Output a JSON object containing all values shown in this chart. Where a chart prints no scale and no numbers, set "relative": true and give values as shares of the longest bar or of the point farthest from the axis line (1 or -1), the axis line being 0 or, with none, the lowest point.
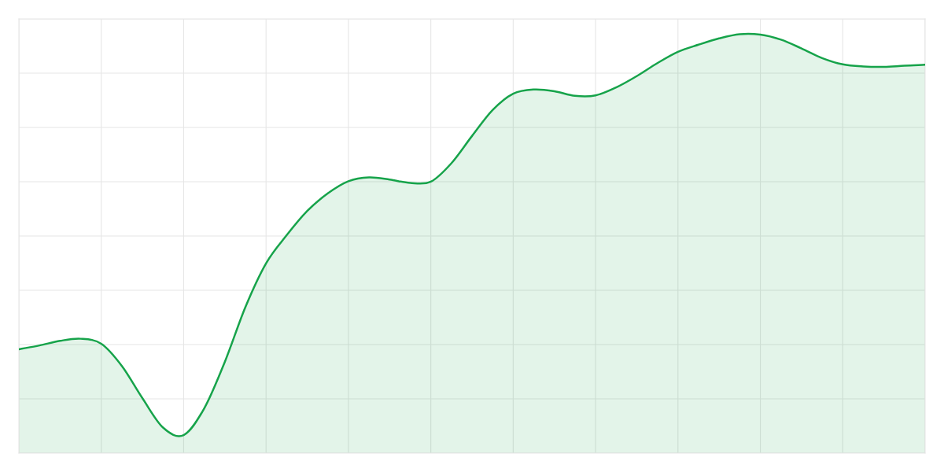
{
  "chart_data": {
    "type": "area",
    "relative": true,
    "categories": [
      null,
      null,
      null,
      null,
      null,
      null,
      null,
      null,
      null,
      null,
      null,
      null,
      null,
      null,
      null,
      null,
      null,
      null,
      null,
      null,
      null,
      null,
      null,
      null,
      null,
      null,
      null,
      null,
      null,
      null,
      null,
      null,
      null,
      null,
      null,
      null,
      null,
      null,
      null,
      null,
      null,
      null,
      null,
      null,
      null
    ],
    "series": [
      {
        "color": "#16a34a",
        "values": [
          0.248,
          0.257,
          0.268,
          0.273,
          0.261,
          0.208,
          0.131,
          0.061,
          0.043,
          0.107,
          0.218,
          0.349,
          0.453,
          0.52,
          0.578,
          0.62,
          0.649,
          0.658,
          0.653,
          0.645,
          0.648,
          0.692,
          0.757,
          0.819,
          0.858,
          0.868,
          0.864,
          0.853,
          0.854,
          0.873,
          0.9,
          0.931,
          0.958,
          0.975,
          0.99,
          1,
          0.999,
          0.987,
          0.966,
          0.943,
          0.928,
          0.923,
          0.922,
          0.925,
          0.927
        ]
      }
    ],
    "grid": true,
    "line_style": "solid"
  }
}
